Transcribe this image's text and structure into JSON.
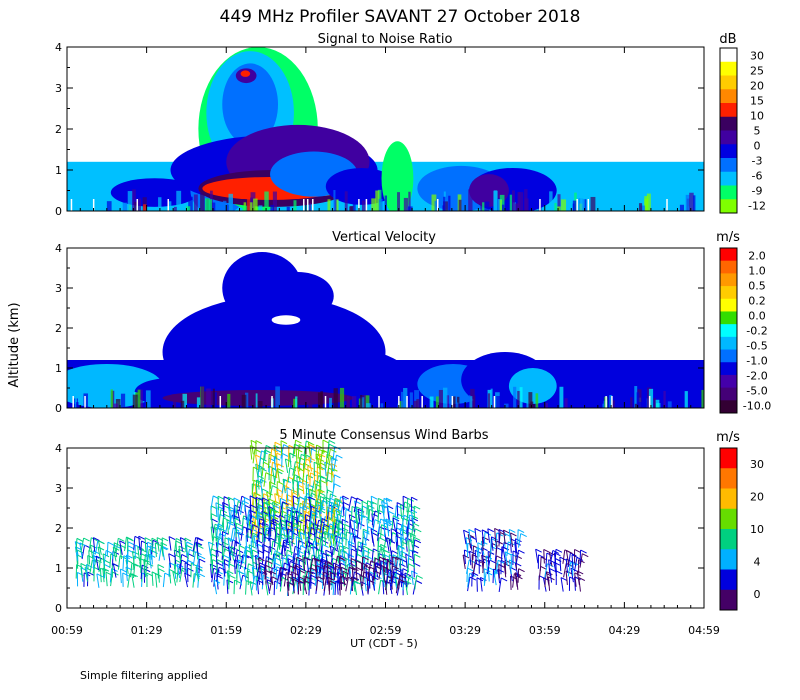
{
  "title": "449 MHz Profiler SAVANT 27 October 2018",
  "ylabel": "Altitude (km)",
  "xlabel": "UT  (CDT - 5)",
  "xticks": [
    "00:59",
    "01:29",
    "01:59",
    "02:29",
    "02:59",
    "03:29",
    "03:59",
    "04:29",
    "04:59"
  ],
  "yticks": [
    "0",
    "1",
    "2",
    "3",
    "4"
  ],
  "footer": "Simple filtering applied",
  "colors": {
    "snr": [
      "#7fff00",
      "#00ff66",
      "#00c0ff",
      "#0070ff",
      "#0000e0",
      "#4000a0",
      "#3a0060",
      "#ff2000",
      "#ff8800",
      "#ffcc00",
      "#ffff00",
      "#ffffff"
    ],
    "vel": [
      "#330033",
      "#440077",
      "#4400aa",
      "#0000dd",
      "#0070ff",
      "#00b8ff",
      "#00ffff",
      "#33dd00",
      "#ffff00",
      "#ffcc00",
      "#ff9900",
      "#ff6600",
      "#ff0000"
    ],
    "wind": [
      "#440066",
      "#0000dd",
      "#00b0ff",
      "#00d080",
      "#66dd00",
      "#ffbb00",
      "#ff7700",
      "#ff0000"
    ]
  },
  "chart_data": [
    {
      "type": "heatmap",
      "title": "Signal to Noise Ratio",
      "units": "dB",
      "xlabel": "UT  (CDT - 5)",
      "ylabel": "Altitude (km)",
      "xlim": [
        "00:59",
        "04:59"
      ],
      "ylim": [
        0,
        4
      ],
      "colorbar_ticks": [
        "30",
        "25",
        "20",
        "15",
        "10",
        "5",
        "0",
        "-3",
        "-6",
        "-9",
        "-12"
      ],
      "features": [
        {
          "x": 0.55,
          "y": 0.5,
          "rx": 0.7,
          "ry": 0.45,
          "level": 2
        },
        {
          "x": 1.1,
          "y": 0.45,
          "rx": 0.55,
          "ry": 0.35,
          "level": 4
        },
        {
          "x": 1.9,
          "y": 0.5,
          "rx": 0.35,
          "ry": 0.6,
          "level": 3
        },
        {
          "x": 2.4,
          "y": 2.0,
          "rx": 0.75,
          "ry": 2.0,
          "level": 1
        },
        {
          "x": 2.3,
          "y": 2.4,
          "rx": 0.55,
          "ry": 1.5,
          "level": 2
        },
        {
          "x": 2.3,
          "y": 2.6,
          "rx": 0.35,
          "ry": 1.0,
          "level": 3
        },
        {
          "x": 2.25,
          "y": 3.3,
          "rx": 0.13,
          "ry": 0.18,
          "level": 5
        },
        {
          "x": 2.24,
          "y": 3.35,
          "rx": 0.06,
          "ry": 0.08,
          "level": 7
        },
        {
          "x": 2.6,
          "y": 1.0,
          "rx": 1.3,
          "ry": 0.85,
          "level": 4
        },
        {
          "x": 2.9,
          "y": 1.2,
          "rx": 0.9,
          "ry": 0.9,
          "level": 5
        },
        {
          "x": 2.6,
          "y": 0.55,
          "rx": 0.95,
          "ry": 0.45,
          "level": 6
        },
        {
          "x": 2.55,
          "y": 0.55,
          "rx": 0.85,
          "ry": 0.28,
          "level": 7
        },
        {
          "x": 3.25,
          "y": 0.55,
          "rx": 0.12,
          "ry": 0.18,
          "level": 8
        },
        {
          "x": 3.1,
          "y": 0.9,
          "rx": 0.55,
          "ry": 0.55,
          "level": 3
        },
        {
          "x": 3.7,
          "y": 0.6,
          "rx": 0.45,
          "ry": 0.45,
          "level": 4
        },
        {
          "x": 4.95,
          "y": 0.55,
          "rx": 0.55,
          "ry": 0.55,
          "level": 3
        },
        {
          "x": 5.6,
          "y": 0.5,
          "rx": 0.55,
          "ry": 0.55,
          "level": 4
        },
        {
          "x": 5.3,
          "y": 0.5,
          "rx": 0.25,
          "ry": 0.4,
          "level": 5
        },
        {
          "x": 4.15,
          "y": 0.8,
          "rx": 0.2,
          "ry": 0.9,
          "level": 1
        }
      ]
    },
    {
      "type": "heatmap",
      "title": "Vertical Velocity",
      "units": "m/s",
      "xlabel": "UT  (CDT - 5)",
      "ylabel": "Altitude (km)",
      "xlim": [
        "00:59",
        "04:59"
      ],
      "ylim": [
        0,
        4
      ],
      "colorbar_ticks": [
        "2.0",
        "1.0",
        "0.5",
        "0.2",
        "0.0",
        "-0.2",
        "-0.5",
        "-1.0",
        "-2.0",
        "-5.0",
        "-10.0"
      ],
      "features": [
        {
          "x": 0.5,
          "y": 0.55,
          "rx": 0.7,
          "ry": 0.55,
          "level": 5
        },
        {
          "x": 1.3,
          "y": 0.4,
          "rx": 0.45,
          "ry": 0.35,
          "level": 3
        },
        {
          "x": 2.6,
          "y": 1.4,
          "rx": 1.4,
          "ry": 1.4,
          "level": 3
        },
        {
          "x": 2.45,
          "y": 3.0,
          "rx": 0.5,
          "ry": 0.9,
          "level": 3
        },
        {
          "x": 2.9,
          "y": 2.8,
          "rx": 0.45,
          "ry": 0.6,
          "level": 3
        },
        {
          "x": 3.1,
          "y": 0.8,
          "rx": 1.2,
          "ry": 0.8,
          "level": 3
        },
        {
          "x": 2.75,
          "y": 2.2,
          "rx": 0.18,
          "ry": 0.12,
          "level": -1
        },
        {
          "x": 2.4,
          "y": 0.25,
          "rx": 1.2,
          "ry": 0.2,
          "level": 1
        },
        {
          "x": 4.85,
          "y": 0.6,
          "rx": 0.45,
          "ry": 0.5,
          "level": 4
        },
        {
          "x": 5.5,
          "y": 0.7,
          "rx": 0.55,
          "ry": 0.7,
          "level": 3
        },
        {
          "x": 5.85,
          "y": 0.55,
          "rx": 0.3,
          "ry": 0.45,
          "level": 5
        }
      ]
    },
    {
      "type": "scatter",
      "title": "5 Minute Consensus Wind Barbs",
      "units": "m/s",
      "xlabel": "UT  (CDT - 5)",
      "ylabel": "Altitude (km)",
      "xlim": [
        "00:59",
        "04:59"
      ],
      "ylim": [
        0,
        4
      ],
      "colorbar_ticks": [
        "30",
        "20",
        "10",
        "4",
        "0"
      ],
      "speed_ranges": [
        {
          "x0": 0.1,
          "x1": 1.7,
          "y0": 0.5,
          "y1": 1.5,
          "speed": [
            5,
            14
          ]
        },
        {
          "x0": 2.3,
          "x1": 3.4,
          "y0": 1.5,
          "y1": 3.9,
          "speed": [
            8,
            24
          ]
        },
        {
          "x0": 1.8,
          "x1": 4.4,
          "y0": 0.3,
          "y1": 2.5,
          "speed": [
            4,
            13
          ]
        },
        {
          "x0": 2.4,
          "x1": 4.2,
          "y0": 0.3,
          "y1": 1.0,
          "speed": [
            1,
            5
          ]
        },
        {
          "x0": 5.0,
          "x1": 5.7,
          "y0": 0.4,
          "y1": 1.7,
          "speed": [
            2,
            10
          ]
        },
        {
          "x0": 5.9,
          "x1": 6.5,
          "y0": 0.4,
          "y1": 1.2,
          "speed": [
            1,
            8
          ]
        }
      ]
    }
  ]
}
